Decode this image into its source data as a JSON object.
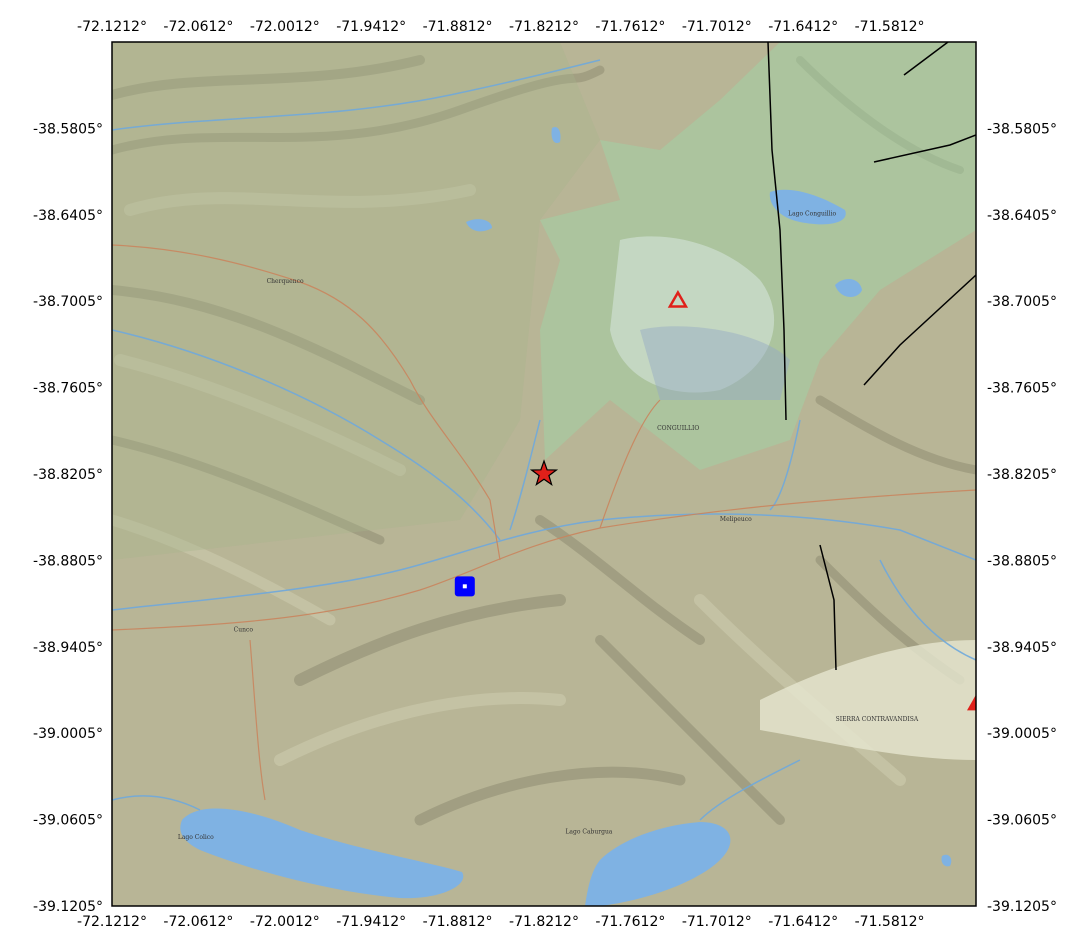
{
  "map": {
    "extent": {
      "lon_min": -72.1212,
      "lon_max": -71.5212,
      "lat_min": -39.1205,
      "lat_max": -38.5205
    },
    "x_ticks_top": [
      "-72.1212°",
      "-72.0612°",
      "-72.0012°",
      "-71.9412°",
      "-71.8812°",
      "-71.8212°",
      "-71.7612°",
      "-71.7012°",
      "-71.6412°",
      "-71.5812°"
    ],
    "x_ticks_bottom": [
      "-72.1212°",
      "-72.0612°",
      "-72.0012°",
      "-71.9412°",
      "-71.8812°",
      "-71.8212°",
      "-71.7612°",
      "-71.7012°",
      "-71.6412°",
      "-71.5812°"
    ],
    "y_ticks_left": [
      "-38.5805°",
      "-38.6405°",
      "-38.7005°",
      "-38.7605°",
      "-38.8205°",
      "-38.8805°",
      "-38.9405°",
      "-39.0005°",
      "-39.0605°",
      "-39.1205°"
    ],
    "y_ticks_right": [
      "-38.5805°",
      "-38.6405°",
      "-38.7005°",
      "-38.7605°",
      "-38.8205°",
      "-38.8805°",
      "-38.9405°",
      "-39.0005°",
      "-39.0605°",
      "-39.1205°"
    ],
    "markers": [
      {
        "type": "star",
        "lon": -71.8212,
        "lat": -38.8205,
        "color": "#e0201a"
      },
      {
        "type": "square",
        "lon": -71.8762,
        "lat": -38.8985,
        "color": "#0000ff"
      },
      {
        "type": "triangle-open",
        "lon": -71.7282,
        "lat": -38.7,
        "color": "#e0201a"
      },
      {
        "type": "triangle",
        "lon": -71.5212,
        "lat": -38.98,
        "color": "#e0201a"
      }
    ],
    "place_labels": [
      {
        "text": "Cherquenco",
        "lon": -72.001,
        "lat": -38.688
      },
      {
        "text": "Melipeuco",
        "lon": -71.688,
        "lat": -38.853
      },
      {
        "text": "CONGUILLIO",
        "lon": -71.728,
        "lat": -38.79
      },
      {
        "text": "Lago Conguillio",
        "lon": -71.635,
        "lat": -38.641
      },
      {
        "text": "Lago Colico",
        "lon": -72.063,
        "lat": -39.074
      },
      {
        "text": "Lago Caburgua",
        "lon": -71.79,
        "lat": -39.07
      },
      {
        "text": "Cunco",
        "lon": -72.03,
        "lat": -38.93
      },
      {
        "text": "SIERRA CONTRAVANDISA",
        "lon": -71.59,
        "lat": -38.992
      }
    ],
    "colors": {
      "terrain": "#b8b596",
      "forest": "#a7b48d",
      "park": "#9fd3a6",
      "water": "#7fb2e3",
      "river": "#6fa8dc",
      "road": "#c9855e",
      "fault": "#000000",
      "frame": "#000000"
    }
  }
}
